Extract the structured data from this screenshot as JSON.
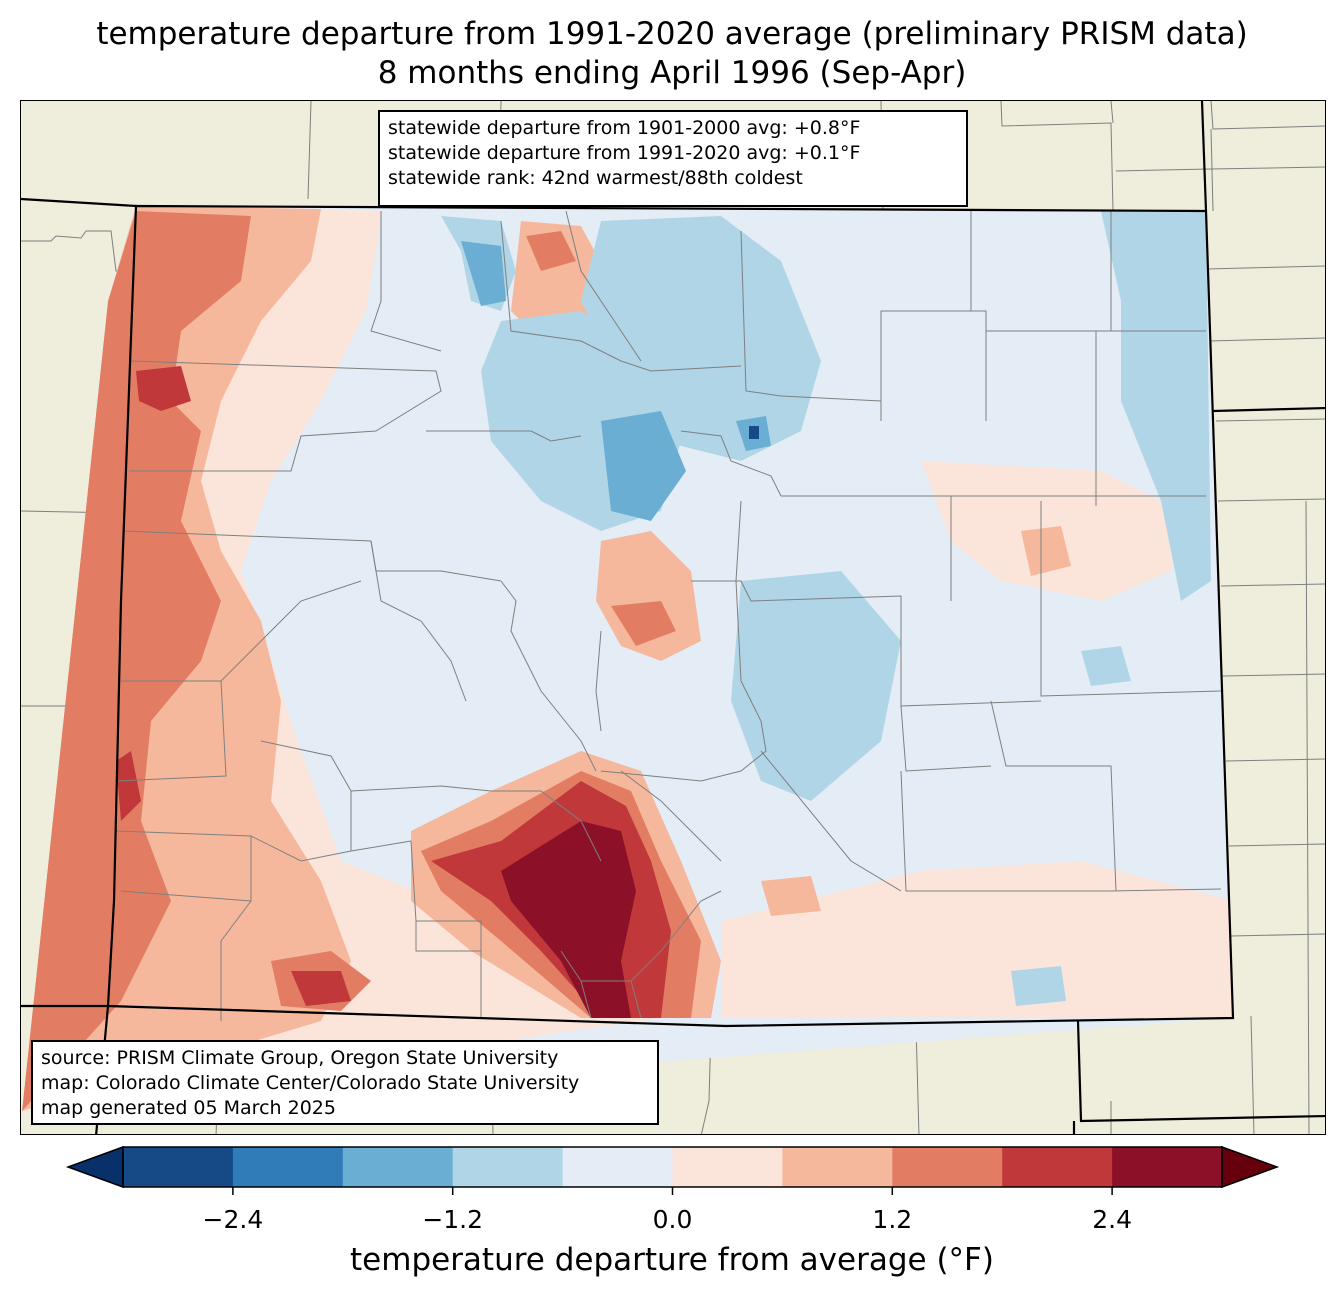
{
  "title": {
    "line1": "temperature departure from 1991-2020 average (preliminary PRISM data)",
    "line2": "8 months ending April 1996 (Sep-Apr)"
  },
  "stats_box": {
    "line1": "statewide departure from 1901-2000 avg: +0.8°F",
    "line2": "statewide departure from 1991-2020 avg: +0.1°F",
    "line3": "statewide rank: 42nd warmest/88th coldest"
  },
  "source_box": {
    "line1": "source: PRISM Climate Group, Oregon State University",
    "line2": "map: Colorado Climate Center/Colorado State University",
    "line3": "map generated 05 March 2025"
  },
  "colorbar": {
    "label": "temperature departure from average (°F)",
    "ticks": [
      {
        "value": -2.4,
        "label": "−2.4"
      },
      {
        "value": -1.2,
        "label": "−1.2"
      },
      {
        "value": 0.0,
        "label": "0.0"
      },
      {
        "value": 1.2,
        "label": "1.2"
      },
      {
        "value": 2.4,
        "label": "2.4"
      }
    ],
    "range": [
      -3.0,
      3.0
    ],
    "step": 0.6,
    "colors": [
      "#08306b",
      "#154a86",
      "#2f7cb8",
      "#6aaed3",
      "#b0d5e7",
      "#e4edf5",
      "#fbe5da",
      "#f6b89c",
      "#e27d64",
      "#c0383a",
      "#8c1027",
      "#67000d"
    ],
    "under_color": "#08306b",
    "over_color": "#67000d"
  },
  "colors": {
    "land": "#efeddb",
    "state_border": "#000000",
    "county_border": "#7f7f7f"
  }
}
